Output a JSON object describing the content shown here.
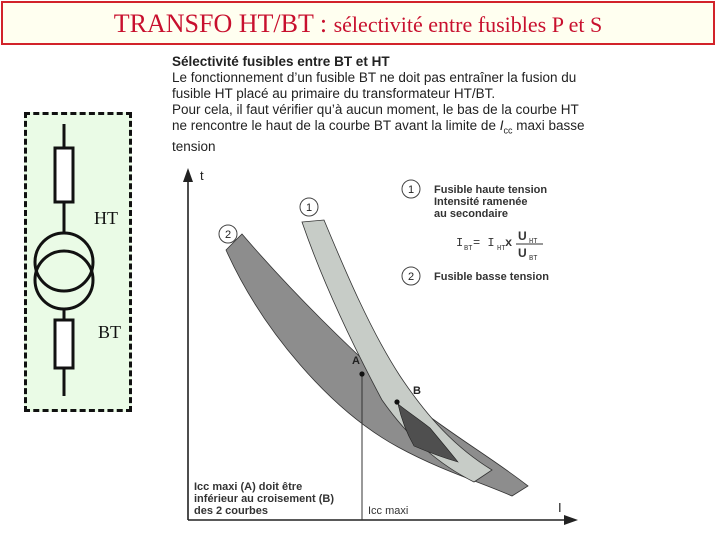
{
  "slide": {
    "title_main": "TRANSFO HT/BT : ",
    "title_sub": "sélectivité entre fusibles P et S"
  },
  "text_block": {
    "heading": "Sélectivité fusibles entre BT et HT",
    "line1": "Le fonctionnement d’un fusible BT ne doit pas entraîner la fusion du",
    "line2": "fusible HT placé au primaire du transformateur HT/BT.",
    "line3": "Pour cela, il faut vérifier qu’à aucun moment, le bas de la courbe HT",
    "line4_pre": "ne rencontre le haut de la courbe BT avant la limite de ",
    "line4_icc": "I",
    "line4_cc": "cc",
    "line4_post": " maxi basse",
    "line5": "tension"
  },
  "schematic": {
    "ht_label": "HT",
    "bt_label": "BT"
  },
  "chart": {
    "y_axis_label": "t",
    "x_axis_label": "I",
    "marker_1": "1",
    "marker_2": "2",
    "point_a": "A",
    "point_b": "B",
    "legend_1_line1": "Fusible haute tension",
    "legend_1_line2": "Intensité ramenée",
    "legend_1_line3": "au secondaire",
    "formula_lhs": "I",
    "formula_lhs_sub": "BT",
    "formula_eq": "= I",
    "formula_rhs_sub": "HT",
    "formula_x": "x",
    "formula_num": "U",
    "formula_num_sub": "HT",
    "formula_den": "U",
    "formula_den_sub": "BT",
    "legend_2": "Fusible basse tension",
    "icc_label": "Icc maxi",
    "note_line1": "Icc maxi (A) doit être",
    "note_line2": "inférieur au croisement (B)",
    "note_line3": "des 2 courbes"
  },
  "colors": {
    "title_red": "#c8102e",
    "title_bg": "#fffff0",
    "band_ht": "#c7ccc7",
    "band_bt": "#8d8d8d",
    "overlap": "#4f4f4f",
    "schematic_bg": "#eafbe6"
  }
}
